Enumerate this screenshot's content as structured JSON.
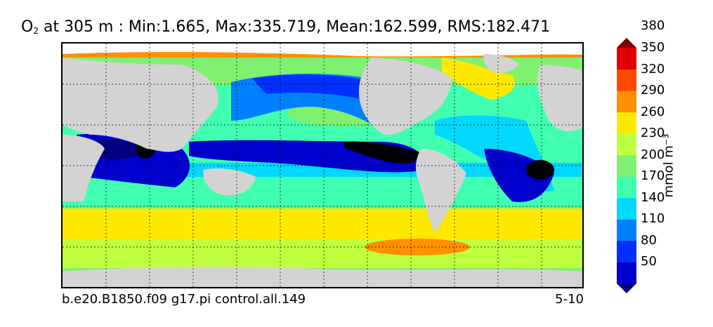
{
  "title": {
    "species_base": "O",
    "species_sub": "2",
    "rest": " at 305 m : Min:1.665, Max:335.719, Mean:162.599, RMS:182.471"
  },
  "footer": {
    "case_name": "b.e20.B1850.f09 g17.pi control.all.149",
    "years": "5-10"
  },
  "colorbar": {
    "unit_label": "mmol m⁻³",
    "ticks": [
      "50",
      "80",
      "110",
      "140",
      "170",
      "200",
      "230",
      "260",
      "290",
      "320",
      "350",
      "380"
    ],
    "colors": [
      "#000080",
      "#0000cc",
      "#0030ff",
      "#0080ff",
      "#00d8ff",
      "#40ffb0",
      "#80f070",
      "#c0ff40",
      "#ffe800",
      "#ff9000",
      "#ff4800",
      "#e00000",
      "#800000"
    ]
  },
  "colors": {
    "land": "#d3d3d3",
    "ice": "#ffffff"
  }
}
